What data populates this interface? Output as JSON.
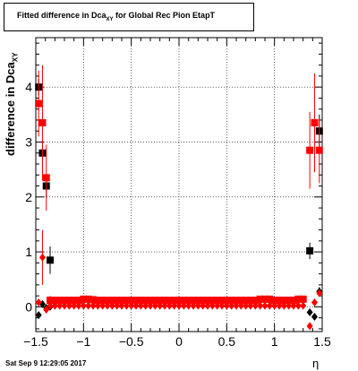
{
  "title": {
    "main": "Fitted difference in Dca",
    "sub": "XY",
    "rest": " for Global Rec Pion EtapT"
  },
  "timestamp": "Sat Sep  9 12:29:05 2017",
  "chart_data": {
    "type": "scatter",
    "title": "Fitted difference in DcaXY for Global Rec Pion EtapT",
    "xlabel": "η",
    "ylabel": "difference in DcaXY",
    "xlim": [
      -1.5,
      1.5
    ],
    "ylim": [
      -0.45,
      4.9
    ],
    "xticks": [
      -1.5,
      -1,
      -0.5,
      0,
      0.5,
      1,
      1.5
    ],
    "xtick_labels": [
      "−1.5",
      "−1",
      "−0.5",
      "0",
      "0.5",
      "1",
      "1.5"
    ],
    "yticks": [
      0,
      1,
      2,
      3,
      4
    ],
    "ytick_labels": [
      "0",
      "1",
      "2",
      "3",
      "4"
    ],
    "grid": true,
    "series": [
      {
        "color": "#000000",
        "marker": "square",
        "points": [
          [
            -1.47,
            4.0,
            0.15
          ],
          [
            -1.43,
            2.8,
            0.25
          ],
          [
            -1.39,
            2.2,
            0.2
          ],
          [
            -1.35,
            0.85,
            0.25
          ],
          [
            1.37,
            1.02,
            0.15
          ],
          [
            1.47,
            3.2,
            0.3
          ]
        ]
      },
      {
        "color": "#ff0000",
        "marker": "square",
        "points": [
          [
            -1.47,
            3.7,
            0.6
          ],
          [
            -1.43,
            3.35,
            1.05
          ],
          [
            -1.39,
            2.35,
            0.6
          ],
          [
            -1.35,
            0.12,
            0.08
          ],
          [
            -1.3,
            0.12,
            0.06
          ],
          [
            -1.25,
            0.12,
            0.05
          ],
          [
            -1.2,
            0.12,
            0.05
          ],
          [
            -1.15,
            0.12,
            0.05
          ],
          [
            -1.1,
            0.12,
            0.05
          ],
          [
            -1.05,
            0.12,
            0.05
          ],
          [
            -1.0,
            0.14,
            0.05
          ],
          [
            -0.95,
            0.14,
            0.05
          ],
          [
            -0.9,
            0.13,
            0.05
          ],
          [
            -0.85,
            0.12,
            0.05
          ],
          [
            -0.8,
            0.12,
            0.05
          ],
          [
            -0.75,
            0.12,
            0.05
          ],
          [
            -0.7,
            0.12,
            0.05
          ],
          [
            -0.65,
            0.12,
            0.05
          ],
          [
            -0.6,
            0.12,
            0.05
          ],
          [
            -0.55,
            0.12,
            0.05
          ],
          [
            -0.5,
            0.12,
            0.05
          ],
          [
            -0.45,
            0.12,
            0.05
          ],
          [
            -0.4,
            0.12,
            0.05
          ],
          [
            -0.35,
            0.12,
            0.05
          ],
          [
            -0.3,
            0.12,
            0.05
          ],
          [
            -0.25,
            0.12,
            0.05
          ],
          [
            -0.2,
            0.12,
            0.05
          ],
          [
            -0.15,
            0.12,
            0.05
          ],
          [
            -0.1,
            0.12,
            0.05
          ],
          [
            -0.05,
            0.12,
            0.05
          ],
          [
            0.0,
            0.12,
            0.05
          ],
          [
            0.05,
            0.12,
            0.05
          ],
          [
            0.1,
            0.12,
            0.05
          ],
          [
            0.15,
            0.12,
            0.05
          ],
          [
            0.2,
            0.12,
            0.05
          ],
          [
            0.25,
            0.12,
            0.05
          ],
          [
            0.3,
            0.12,
            0.05
          ],
          [
            0.35,
            0.12,
            0.05
          ],
          [
            0.4,
            0.12,
            0.05
          ],
          [
            0.45,
            0.12,
            0.05
          ],
          [
            0.5,
            0.12,
            0.05
          ],
          [
            0.55,
            0.12,
            0.05
          ],
          [
            0.6,
            0.12,
            0.05
          ],
          [
            0.65,
            0.12,
            0.05
          ],
          [
            0.7,
            0.12,
            0.05
          ],
          [
            0.75,
            0.12,
            0.05
          ],
          [
            0.8,
            0.12,
            0.05
          ],
          [
            0.85,
            0.14,
            0.05
          ],
          [
            0.9,
            0.14,
            0.05
          ],
          [
            0.95,
            0.14,
            0.05
          ],
          [
            1.0,
            0.12,
            0.05
          ],
          [
            1.05,
            0.12,
            0.05
          ],
          [
            1.1,
            0.12,
            0.05
          ],
          [
            1.15,
            0.12,
            0.05
          ],
          [
            1.2,
            0.12,
            0.05
          ],
          [
            1.25,
            0.14,
            0.05
          ],
          [
            1.3,
            0.14,
            0.05
          ],
          [
            1.37,
            2.85,
            0.7
          ],
          [
            1.42,
            3.35,
            0.9
          ],
          [
            1.47,
            2.85,
            0.6
          ]
        ]
      },
      {
        "color": "#000000",
        "marker": "diamond",
        "points": [
          [
            -1.47,
            -0.15,
            0.03
          ],
          [
            -1.43,
            0.05,
            0.03
          ],
          [
            -1.39,
            -0.02,
            0.03
          ],
          [
            -1.35,
            0.0,
            0.03
          ],
          [
            -1.3,
            0.02,
            0.02
          ],
          [
            1.37,
            -0.1,
            0.03
          ],
          [
            1.42,
            -0.18,
            0.03
          ],
          [
            1.47,
            0.28,
            0.08
          ]
        ]
      },
      {
        "color": "#ff0000",
        "marker": "diamond",
        "points": [
          [
            -1.47,
            0.08,
            0.05
          ],
          [
            -1.43,
            0.9,
            0.5
          ],
          [
            -1.39,
            -0.05,
            0.03
          ],
          [
            -1.35,
            0.02,
            0.03
          ],
          [
            -1.3,
            0.02,
            0.02
          ],
          [
            -1.25,
            0.02,
            0.02
          ],
          [
            -1.2,
            0.02,
            0.02
          ],
          [
            -1.15,
            0.02,
            0.02
          ],
          [
            -1.1,
            0.02,
            0.02
          ],
          [
            -1.05,
            0.02,
            0.02
          ],
          [
            -1.0,
            0.02,
            0.02
          ],
          [
            -0.95,
            0.02,
            0.02
          ],
          [
            -0.9,
            0.02,
            0.02
          ],
          [
            -0.85,
            0.02,
            0.02
          ],
          [
            -0.8,
            0.02,
            0.02
          ],
          [
            -0.75,
            0.02,
            0.02
          ],
          [
            -0.7,
            0.02,
            0.02
          ],
          [
            -0.65,
            0.02,
            0.02
          ],
          [
            -0.6,
            0.02,
            0.02
          ],
          [
            -0.55,
            0.02,
            0.02
          ],
          [
            -0.5,
            0.02,
            0.02
          ],
          [
            -0.45,
            0.02,
            0.02
          ],
          [
            -0.4,
            0.02,
            0.02
          ],
          [
            -0.35,
            0.02,
            0.02
          ],
          [
            -0.3,
            0.02,
            0.02
          ],
          [
            -0.25,
            0.02,
            0.02
          ],
          [
            -0.2,
            0.02,
            0.02
          ],
          [
            -0.15,
            0.02,
            0.02
          ],
          [
            -0.1,
            0.02,
            0.02
          ],
          [
            -0.05,
            0.02,
            0.02
          ],
          [
            0.0,
            0.02,
            0.02
          ],
          [
            0.05,
            0.02,
            0.02
          ],
          [
            0.1,
            0.02,
            0.02
          ],
          [
            0.15,
            0.02,
            0.02
          ],
          [
            0.2,
            0.02,
            0.02
          ],
          [
            0.25,
            0.02,
            0.02
          ],
          [
            0.3,
            0.02,
            0.02
          ],
          [
            0.35,
            0.02,
            0.02
          ],
          [
            0.4,
            0.02,
            0.02
          ],
          [
            0.45,
            0.02,
            0.02
          ],
          [
            0.5,
            0.02,
            0.02
          ],
          [
            0.55,
            0.02,
            0.02
          ],
          [
            0.6,
            0.02,
            0.02
          ],
          [
            0.65,
            0.02,
            0.02
          ],
          [
            0.7,
            0.02,
            0.02
          ],
          [
            0.75,
            0.02,
            0.02
          ],
          [
            0.8,
            0.02,
            0.02
          ],
          [
            0.85,
            0.02,
            0.02
          ],
          [
            0.9,
            0.02,
            0.02
          ],
          [
            0.95,
            0.02,
            0.02
          ],
          [
            1.0,
            0.02,
            0.02
          ],
          [
            1.05,
            0.02,
            0.02
          ],
          [
            1.1,
            0.02,
            0.02
          ],
          [
            1.15,
            0.02,
            0.02
          ],
          [
            1.2,
            0.02,
            0.02
          ],
          [
            1.25,
            0.02,
            0.02
          ],
          [
            1.3,
            0.02,
            0.02
          ],
          [
            1.37,
            -0.35,
            0.03
          ],
          [
            1.42,
            0.08,
            0.05
          ],
          [
            1.47,
            0.25,
            0.06
          ]
        ]
      }
    ]
  }
}
